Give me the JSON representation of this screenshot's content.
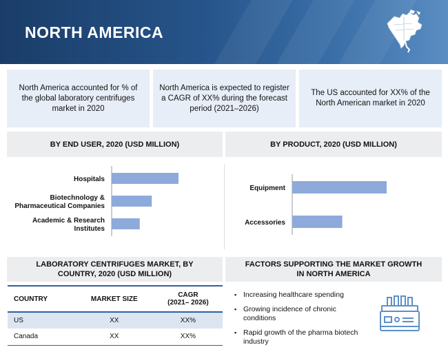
{
  "banner": {
    "title": "NORTH AMERICA"
  },
  "cards": [
    {
      "text": "North America accounted for % of the global laboratory centrifuges market in 2020"
    },
    {
      "text": "North America is expected to register a CAGR of XX% during the forecast period (2021–2026)"
    },
    {
      "text": "The US accounted for XX% of the North American market in 2020"
    }
  ],
  "sections": {
    "end_user": "BY END USER, 2020 (USD MILLION)",
    "product": "BY PRODUCT, 2020 (USD MILLION)",
    "country": "LABORATORY CENTRIFUGES MARKET, BY COUNTRY, 2020 (USD MILLION)",
    "factors": "FACTORS SUPPORTING THE MARKET GROWTH IN NORTH AMERICA"
  },
  "chart_data": [
    {
      "type": "bar",
      "orientation": "horizontal",
      "title": "BY END USER, 2020 (USD MILLION)",
      "categories": [
        "Hospitals",
        "Biotechnology & Pharmaceutical Companies",
        "Academic & Research Institutes"
      ],
      "category_lines": [
        [
          "Hospitals"
        ],
        [
          "Biotechnology &",
          "Pharmaceutical Companies"
        ],
        [
          "Academic & Research",
          "Institutes"
        ]
      ],
      "values": [
        100,
        60,
        42
      ],
      "value_note": "relative bar lengths; no axis values printed",
      "xlim": [
        0,
        100
      ],
      "grid": false,
      "color": "#8eaadb"
    },
    {
      "type": "bar",
      "orientation": "horizontal",
      "title": "BY PRODUCT, 2020 (USD MILLION)",
      "categories": [
        "Equipment",
        "Accessories"
      ],
      "category_lines": [
        [
          "Equipment"
        ],
        [
          "Accessories"
        ]
      ],
      "values": [
        100,
        53
      ],
      "value_note": "relative bar lengths; no axis values printed",
      "xlim": [
        0,
        100
      ],
      "grid": false,
      "color": "#8eaadb"
    }
  ],
  "table": {
    "headers": [
      "COUNTRY",
      "MARKET SIZE",
      "CAGR (2021–2026)"
    ],
    "header_lines": [
      [
        "COUNTRY"
      ],
      [
        "MARKET SIZE"
      ],
      [
        "CAGR",
        "(2021– 2026)"
      ]
    ],
    "rows": [
      [
        "US",
        "XX",
        "XX%"
      ],
      [
        "Canada",
        "XX",
        "XX%"
      ]
    ]
  },
  "factors": [
    "Increasing healthcare spending",
    "Growing incidence of chronic conditions",
    "Rapid growth of the pharma biotech industry"
  ],
  "colors": {
    "banner": "#26548a",
    "card_bg": "#e7eef8",
    "section_bg": "#ecedef",
    "table_rule": "#2f5fa0",
    "row_shade": "#dde5f1",
    "bar": "#8eaadb"
  },
  "icons": {
    "banner_icon": "north-america-map-icon",
    "factor_icon": "centrifuge-icon",
    "bullet": "square-bullet"
  }
}
